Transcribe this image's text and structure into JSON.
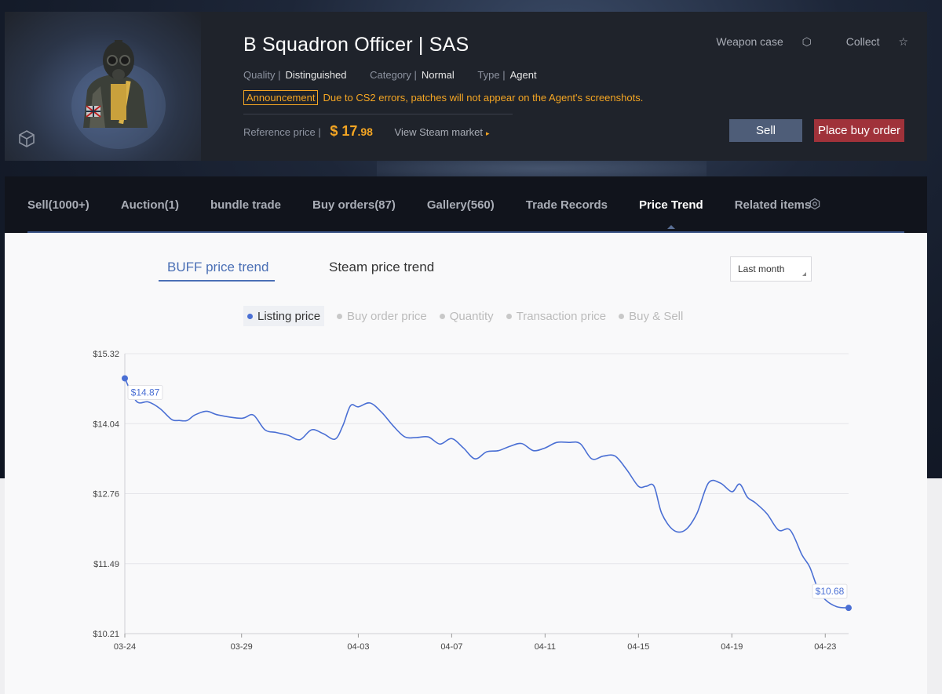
{
  "item": {
    "title": "B Squadron Officer | SAS",
    "quality_label": "Quality |",
    "quality_value": "Distinguished",
    "category_label": "Category |",
    "category_value": "Normal",
    "type_label": "Type |",
    "type_value": "Agent",
    "announcement_tag": "Announcement",
    "announcement_text": "Due to CS2 errors, patches will not appear on the Agent's screenshots.",
    "reference_label": "Reference price |",
    "price_symbol": "$",
    "price_int": "17",
    "price_dec": ".98",
    "steam_link": "View Steam market",
    "weapon_case": "Weapon case",
    "collect": "Collect",
    "sell_button": "Sell",
    "buy_order_button": "Place buy order"
  },
  "tabs": [
    {
      "label": "Sell(1000+)"
    },
    {
      "label": "Auction(1)"
    },
    {
      "label": "bundle trade"
    },
    {
      "label": "Buy orders(87)"
    },
    {
      "label": "Gallery(560)"
    },
    {
      "label": "Trade Records"
    },
    {
      "label": "Price Trend",
      "active": true
    },
    {
      "label": "Related items"
    }
  ],
  "trend": {
    "buff_tab": "BUFF price trend",
    "steam_tab": "Steam price trend",
    "range_select": "Last month",
    "legend": [
      "Listing price",
      "Buy order price",
      "Quantity",
      "Transaction price",
      "Buy & Sell"
    ],
    "active_legend": 0
  },
  "colors": {
    "accent": "#4a6fd4",
    "price": "#f5a623",
    "sell_button": "#4e5d78",
    "buy_button": "#a0323a"
  },
  "chart_data": {
    "type": "line",
    "title": "",
    "xlabel": "",
    "ylabel": "",
    "series": [
      {
        "name": "Listing price",
        "x": [
          "03-24",
          "03-24",
          "03-25",
          "03-25",
          "03-26",
          "03-26",
          "03-26",
          "03-27",
          "03-27",
          "03-28",
          "03-29",
          "03-29",
          "03-30",
          "03-30",
          "03-31",
          "03-31",
          "04-01",
          "04-01",
          "04-02",
          "04-02",
          "04-02",
          "04-03",
          "04-03",
          "04-04",
          "04-04",
          "04-05",
          "04-05",
          "04-06",
          "04-06",
          "04-07",
          "04-07",
          "04-08",
          "04-08",
          "04-09",
          "04-09",
          "04-10",
          "04-10",
          "04-11",
          "04-11",
          "04-12",
          "04-12",
          "04-13",
          "04-13",
          "04-14",
          "04-14",
          "04-15",
          "04-15",
          "04-15",
          "04-16",
          "04-16",
          "04-17",
          "04-17",
          "04-18",
          "04-18",
          "04-19",
          "04-19",
          "04-19",
          "04-20",
          "04-20",
          "04-21",
          "04-21",
          "04-22",
          "04-22",
          "04-22",
          "04-23",
          "04-23",
          "04-24"
        ],
        "values": [
          14.87,
          14.45,
          14.44,
          14.32,
          14.12,
          14.1,
          14.1,
          14.2,
          14.27,
          14.2,
          14.14,
          14.2,
          13.93,
          13.88,
          13.83,
          13.75,
          13.93,
          13.86,
          13.76,
          14.0,
          14.37,
          14.35,
          14.42,
          14.25,
          14.0,
          13.8,
          13.79,
          13.8,
          13.67,
          13.77,
          13.6,
          13.4,
          13.53,
          13.55,
          13.63,
          13.68,
          13.55,
          13.6,
          13.7,
          13.7,
          13.68,
          13.4,
          13.45,
          13.45,
          13.2,
          12.9,
          12.9,
          12.9,
          12.4,
          12.1,
          12.1,
          12.4,
          12.96,
          12.96,
          12.8,
          12.94,
          12.7,
          12.6,
          12.4,
          12.1,
          12.1,
          11.65,
          11.43,
          11.05,
          10.83,
          10.7,
          10.68
        ]
      }
    ],
    "y_ticks": [
      "$15.32",
      "$14.04",
      "$12.76",
      "$11.49",
      "$10.21"
    ],
    "x_ticks": [
      "03-24",
      "03-29",
      "04-03",
      "04-07",
      "04-11",
      "04-15",
      "04-19",
      "04-23"
    ],
    "ylim": [
      10.21,
      15.32
    ],
    "xlim": [
      "03-24",
      "04-24"
    ],
    "annotations": [
      {
        "label": "$14.87",
        "x": "03-24",
        "value": 14.87
      },
      {
        "label": "$10.68",
        "x": "04-24",
        "value": 10.68
      }
    ],
    "grid": true,
    "legend": "top-center"
  }
}
